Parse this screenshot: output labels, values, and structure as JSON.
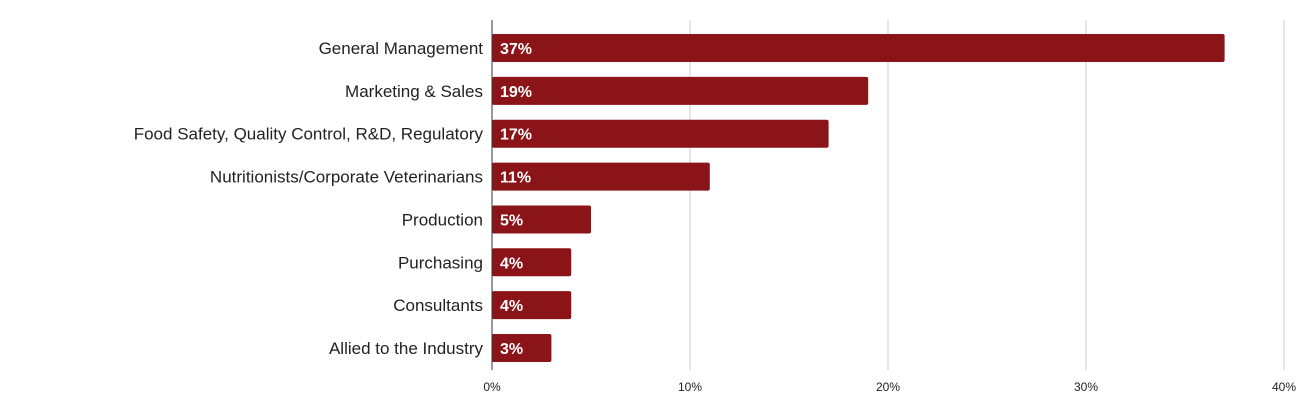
{
  "chart_data": {
    "type": "bar",
    "orientation": "horizontal",
    "categories": [
      "General Management",
      "Marketing & Sales",
      "Food Safety, Quality Control, R&D, Regulatory",
      "Nutritionists/Corporate Veterinarians",
      "Production",
      "Purchasing",
      "Consultants",
      "Allied to the Industry"
    ],
    "values": [
      37,
      19,
      17,
      11,
      5,
      4,
      4,
      3
    ],
    "value_labels": [
      "37%",
      "19%",
      "17%",
      "11%",
      "5%",
      "4%",
      "4%",
      "3%"
    ],
    "xlim": [
      0,
      40
    ],
    "x_ticks": [
      0,
      10,
      20,
      30,
      40
    ],
    "x_tick_labels": [
      "0%",
      "10%",
      "20%",
      "30%",
      "40%"
    ],
    "title": "",
    "xlabel": "",
    "ylabel": "",
    "grid": "vertical",
    "legend": "none",
    "bar_color": "#8b1418",
    "grid_color": "#cccccc",
    "axis_color": "#333333"
  }
}
